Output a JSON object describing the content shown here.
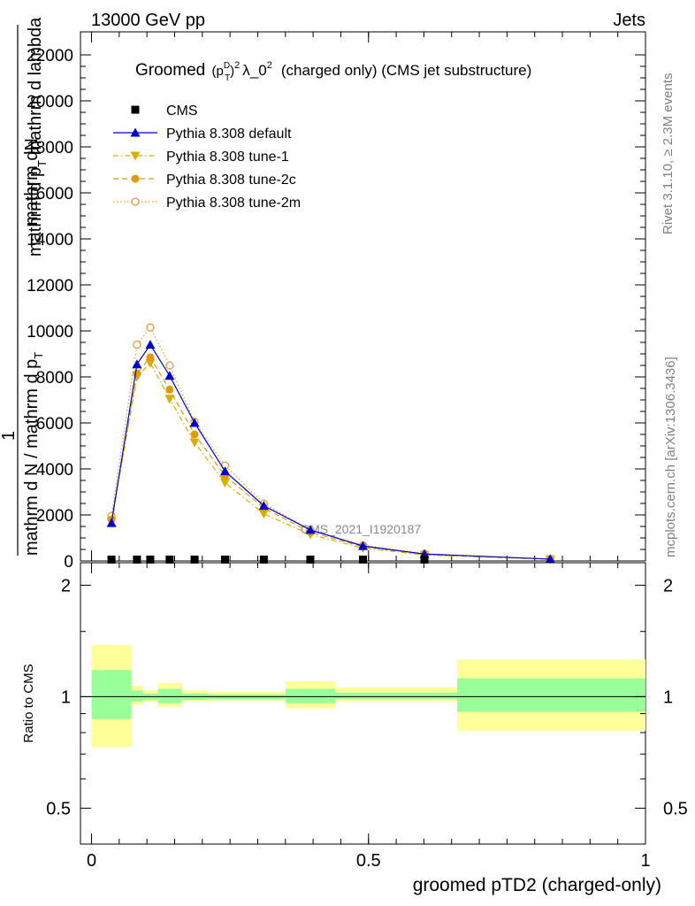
{
  "header": {
    "energy_label": "13000 GeV pp",
    "process_label": "Jets"
  },
  "side_labels": {
    "rivet": "Rivet 3.1.10, ≥ 2.3M events",
    "mcplots": "mcplots.cern.ch [arXiv:1306.3436]"
  },
  "colors": {
    "cms": "#000000",
    "default": "#0000cc",
    "tune1": "#d4b000",
    "tune2c": "#e09a10",
    "tune2m": "#e09a40",
    "band_inner": "#99ff99",
    "band_outer": "#ffff99"
  },
  "chart_data": [
    {
      "type": "line",
      "title_main": "Groomed",
      "title_sup": "2",
      "title_sub_p": "p",
      "title_sub_T": "T",
      "title_sub_D": "D",
      "title_lambda": "λ_0",
      "title_rest": "(charged only) (CMS jet substructure)",
      "ylabel_a": "mathrm d",
      "ylabel_N": "N",
      "ylabel_b": "mathrm d p",
      "ylabel_T": "T",
      "ylabel_c": " mathrm d lambda",
      "ylabel_one": "1",
      "ylabel_d": "mathrm d N / mathrm d p",
      "ylabel_e": "T",
      "ylim": [
        0,
        23000
      ],
      "yticks": [
        0,
        2000,
        4000,
        6000,
        8000,
        10000,
        12000,
        14000,
        16000,
        18000,
        20000,
        22000
      ],
      "ytick_labels": [
        "0",
        "2000",
        "4000",
        "6000",
        "8000",
        "10000",
        "12000",
        "14000",
        "16000",
        "18000",
        "20000",
        "22000"
      ],
      "xlim": [
        -0.02,
        1.0
      ],
      "watermark": "CMS_2021_I1920187",
      "legend_position": "top-left",
      "series": [
        {
          "name": "CMS",
          "marker": "square",
          "x": [
            0.036,
            0.082,
            0.106,
            0.141,
            0.186,
            0.241,
            0.311,
            0.395,
            0.49,
            0.601
          ],
          "values": [
            60,
            60,
            60,
            60,
            60,
            60,
            60,
            60,
            60,
            60
          ]
        },
        {
          "name": "Pythia 8.308 default",
          "marker": "triangle-up",
          "x": [
            0.036,
            0.082,
            0.106,
            0.141,
            0.186,
            0.241,
            0.311,
            0.395,
            0.49,
            0.601,
            0.828
          ],
          "values": [
            1650,
            8550,
            9400,
            8050,
            6000,
            3900,
            2400,
            1350,
            650,
            300,
            80
          ]
        },
        {
          "name": "Pythia 8.308 tune-1",
          "marker": "triangle-down",
          "x": [
            0.036,
            0.082,
            0.106,
            0.141,
            0.186,
            0.241,
            0.311,
            0.395,
            0.49,
            0.601,
            0.828
          ],
          "values": [
            1700,
            8000,
            8600,
            7050,
            5150,
            3400,
            2050,
            1150,
            560,
            260,
            70
          ]
        },
        {
          "name": "Pythia 8.308 tune-2c",
          "marker": "circle",
          "x": [
            0.036,
            0.082,
            0.106,
            0.141,
            0.186,
            0.241,
            0.311,
            0.395,
            0.49,
            0.601,
            0.828
          ],
          "values": [
            1800,
            8150,
            8850,
            7450,
            5500,
            3700,
            2300,
            1250,
            620,
            280,
            75
          ]
        },
        {
          "name": "Pythia 8.308 tune-2m",
          "marker": "circle-open",
          "x": [
            0.036,
            0.082,
            0.106,
            0.141,
            0.186,
            0.241,
            0.311,
            0.395,
            0.49,
            0.601,
            0.828
          ],
          "values": [
            1950,
            9400,
            10150,
            8500,
            6050,
            4150,
            2500,
            1350,
            680,
            320,
            85
          ]
        }
      ]
    },
    {
      "type": "area",
      "ylabel": "Ratio to CMS",
      "xlabel": "groomed pTD2 (charged-only)",
      "ylim": [
        0.4,
        2.3
      ],
      "ylog": true,
      "yticks": [
        0.5,
        1,
        2
      ],
      "ytick_labels": [
        "0.5",
        "1",
        "2"
      ],
      "xlim": [
        -0.02,
        1.0
      ],
      "xticks": [
        0,
        0.5,
        1
      ],
      "xtick_labels": [
        "0",
        "0.5",
        "1"
      ],
      "bins": [
        {
          "x0": 0.0,
          "x1": 0.072,
          "inner": [
            0.87,
            1.18
          ],
          "outer": [
            0.73,
            1.38
          ]
        },
        {
          "x0": 0.072,
          "x1": 0.092,
          "inner": [
            0.97,
            1.04
          ],
          "outer": [
            0.95,
            1.07
          ]
        },
        {
          "x0": 0.092,
          "x1": 0.12,
          "inner": [
            0.98,
            1.02
          ],
          "outer": [
            0.97,
            1.04
          ]
        },
        {
          "x0": 0.12,
          "x1": 0.162,
          "inner": [
            0.96,
            1.05
          ],
          "outer": [
            0.94,
            1.09
          ]
        },
        {
          "x0": 0.162,
          "x1": 0.21,
          "inner": [
            0.98,
            1.02
          ],
          "outer": [
            0.97,
            1.04
          ]
        },
        {
          "x0": 0.21,
          "x1": 0.35,
          "inner": [
            0.985,
            1.015
          ],
          "outer": [
            0.975,
            1.03
          ]
        },
        {
          "x0": 0.35,
          "x1": 0.44,
          "inner": [
            0.96,
            1.05
          ],
          "outer": [
            0.93,
            1.1
          ]
        },
        {
          "x0": 0.44,
          "x1": 0.66,
          "inner": [
            0.985,
            1.025
          ],
          "outer": [
            0.97,
            1.06
          ]
        },
        {
          "x0": 0.66,
          "x1": 1.0,
          "inner": [
            0.91,
            1.12
          ],
          "outer": [
            0.81,
            1.26
          ]
        }
      ]
    }
  ]
}
